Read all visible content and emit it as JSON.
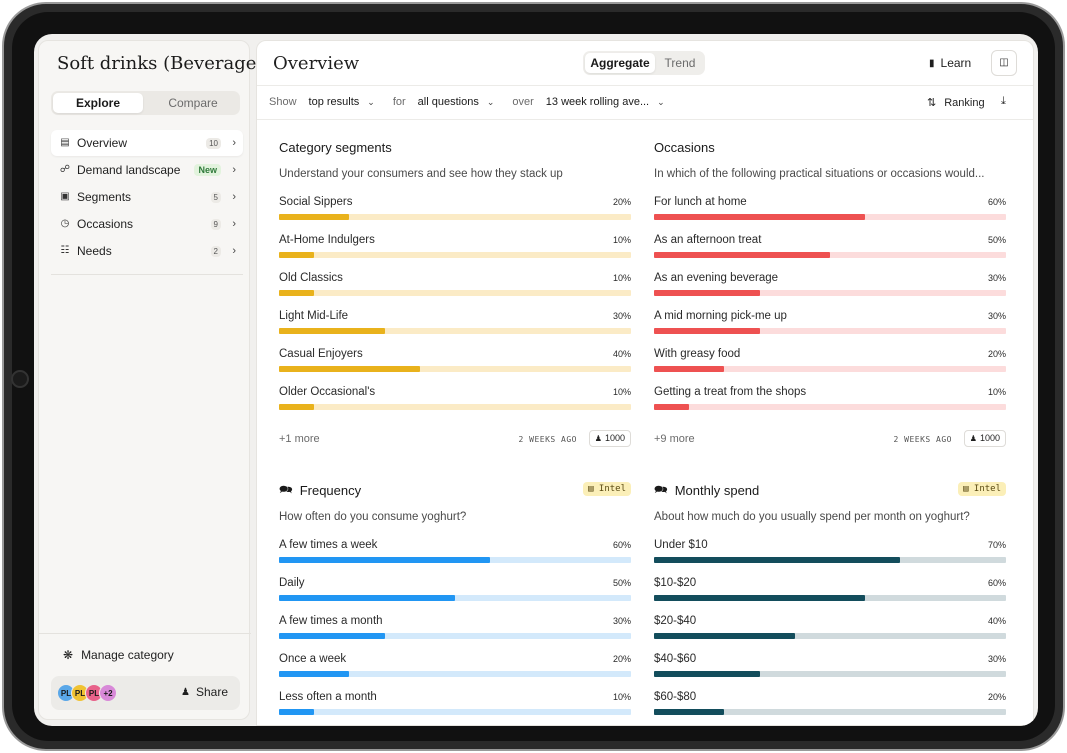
{
  "sidebar": {
    "app_title": "Soft drinks (Beverage...",
    "tabs": [
      {
        "label": "Explore",
        "active": true
      },
      {
        "label": "Compare",
        "active": false
      }
    ],
    "nav": [
      {
        "label": "Overview",
        "icon": "table-icon",
        "badge": "10",
        "active": true
      },
      {
        "label": "Demand landscape",
        "icon": "network-icon",
        "badge": "New"
      },
      {
        "label": "Segments",
        "icon": "users-frame-icon",
        "badge": "5"
      },
      {
        "label": "Occasions",
        "icon": "clock-icon",
        "badge": "9"
      },
      {
        "label": "Needs",
        "icon": "needs-icon",
        "badge": "2"
      }
    ],
    "manage_label": "Manage category",
    "avatars": [
      {
        "initials": "PL",
        "color": "#5aa7e8"
      },
      {
        "initials": "PL",
        "color": "#f0c232"
      },
      {
        "initials": "PL",
        "color": "#e8628a"
      },
      {
        "initials": "+2",
        "color": "#d889d8"
      }
    ],
    "share_label": "Share"
  },
  "header": {
    "title": "Overview",
    "views": [
      {
        "label": "Aggregate",
        "active": true
      },
      {
        "label": "Trend",
        "active": false
      }
    ],
    "learn_label": "Learn"
  },
  "filters": {
    "show_label": "Show",
    "show_value": "top results",
    "for_label": "for",
    "for_value": "all questions",
    "over_label": "over",
    "over_value": "13 week rolling ave...",
    "ranking_label": "Ranking"
  },
  "cards": [
    {
      "title": "Category segments",
      "subtitle": "Understand your consumers and see how they stack up",
      "color": "#e9b21c",
      "track": "#fbebc6",
      "rows": [
        {
          "label": "Social Sippers",
          "value": "20%",
          "pct": 20
        },
        {
          "label": "At-Home Indulgers",
          "value": "10%",
          "pct": 10
        },
        {
          "label": "Old Classics",
          "value": "10%",
          "pct": 10
        },
        {
          "label": "Light Mid-Life",
          "value": "30%",
          "pct": 30
        },
        {
          "label": "Casual Enjoyers",
          "value": "40%",
          "pct": 40
        },
        {
          "label": "Older Occasional's",
          "value": "10%",
          "pct": 10
        }
      ],
      "more": "+1 more",
      "ago": "2 WEEKS AGO",
      "sample": "1000"
    },
    {
      "title": "Occasions",
      "subtitle": "In which of the following practical situations or occasions would...",
      "color": "#ee5151",
      "track": "#fcdcdc",
      "rows": [
        {
          "label": "For lunch at home",
          "value": "60%",
          "pct": 60
        },
        {
          "label": "As an afternoon treat",
          "value": "50%",
          "pct": 50
        },
        {
          "label": "As an evening beverage",
          "value": "30%",
          "pct": 30
        },
        {
          "label": "A mid morning pick-me up",
          "value": "30%",
          "pct": 30
        },
        {
          "label": "With greasy food",
          "value": "20%",
          "pct": 20
        },
        {
          "label": "Getting a treat from the shops",
          "value": "10%",
          "pct": 10
        }
      ],
      "more": "+9 more",
      "ago": "2 WEEKS AGO",
      "sample": "1000"
    },
    {
      "title": "Frequency",
      "intel": "Intel",
      "subtitle": "How often do you consume yoghurt?",
      "color": "#2196f3",
      "track": "#d3e9fb",
      "rows": [
        {
          "label": "A few times a week",
          "value": "60%",
          "pct": 60
        },
        {
          "label": "Daily",
          "value": "50%",
          "pct": 50
        },
        {
          "label": "A few times a month",
          "value": "30%",
          "pct": 30
        },
        {
          "label": "Once a week",
          "value": "20%",
          "pct": 20
        },
        {
          "label": "Less often a month",
          "value": "10%",
          "pct": 10
        }
      ]
    },
    {
      "title": "Monthly spend",
      "intel": "Intel",
      "subtitle": "About how much do you usually spend per month on yoghurt?",
      "color": "#134d5c",
      "track": "#d0dadd",
      "rows": [
        {
          "label": "Under $10",
          "value": "70%",
          "pct": 70
        },
        {
          "label": "$10-$20",
          "value": "60%",
          "pct": 60
        },
        {
          "label": "$20-$40",
          "value": "40%",
          "pct": 40
        },
        {
          "label": "$40-$60",
          "value": "30%",
          "pct": 30
        },
        {
          "label": "$60-$80",
          "value": "20%",
          "pct": 20
        }
      ]
    }
  ]
}
